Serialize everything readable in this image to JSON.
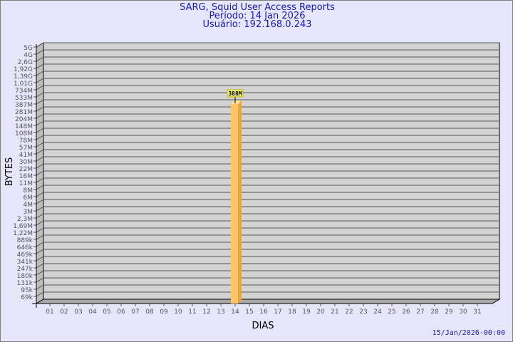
{
  "header": {
    "title": "SARG, Squid User Access Reports",
    "period": "Período: 14 Jan 2026",
    "user": "Usuário: 192.168.0.243"
  },
  "footer": {
    "timestamp": "15/Jan/2026-00:00"
  },
  "chart_data": {
    "type": "bar",
    "xlabel": "DIAS",
    "ylabel": "BYTES",
    "y_scale": "log",
    "grid": true,
    "y_ticks": [
      "5G",
      "4G",
      "2,6G",
      "1,92G",
      "1,39G",
      "1,01G",
      "734M",
      "533M",
      "387M",
      "281M",
      "204M",
      "148M",
      "108M",
      "78M",
      "57M",
      "41M",
      "30M",
      "22M",
      "16M",
      "11M",
      "8M",
      "6M",
      "4M",
      "3M",
      "2,3M",
      "1,69M",
      "1,22M",
      "889k",
      "646k",
      "469k",
      "341k",
      "247k",
      "180k",
      "131k",
      "95k",
      "69k"
    ],
    "categories": [
      "01",
      "02",
      "03",
      "04",
      "05",
      "06",
      "07",
      "08",
      "09",
      "10",
      "11",
      "12",
      "13",
      "14",
      "15",
      "16",
      "17",
      "18",
      "19",
      "20",
      "21",
      "22",
      "23",
      "24",
      "25",
      "26",
      "27",
      "28",
      "29",
      "30",
      "31"
    ],
    "bars": [
      {
        "category": "14",
        "value": 388000000,
        "label": "388M"
      }
    ],
    "colors": {
      "bar": "#fdc565",
      "bar_side": "#e0a848",
      "bar_top": "#ffe09a",
      "wall": "#d3d3d3",
      "label_bg": "#f3f08a"
    }
  }
}
